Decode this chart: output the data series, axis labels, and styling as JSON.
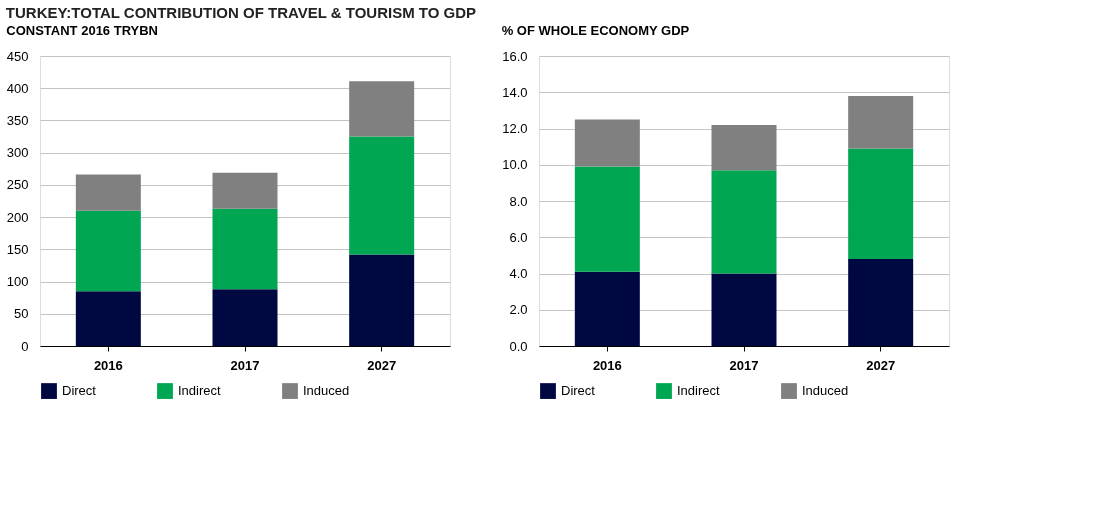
{
  "chart_data": [
    {
      "type": "bar",
      "title": "TURKEY:TOTAL CONTRIBUTION OF TRAVEL & TOURISM TO GDP",
      "subtitle": "CONSTANT 2016 TRYBN",
      "categories": [
        "2016",
        "2017",
        "2027"
      ],
      "stacked": true,
      "ylim": [
        0,
        450
      ],
      "yticks": [
        0,
        50,
        100,
        150,
        200,
        250,
        300,
        350,
        400,
        450
      ],
      "grid": "y",
      "legend": "bottom",
      "series": [
        {
          "name": "Direct",
          "color": "#000842",
          "values": [
            85,
            88,
            142
          ]
        },
        {
          "name": "Indirect",
          "color": "#00a651",
          "values": [
            125,
            125,
            183
          ]
        },
        {
          "name": "Induced",
          "color": "#808080",
          "values": [
            56,
            56,
            86
          ]
        }
      ]
    },
    {
      "type": "bar",
      "subtitle": "% OF WHOLE ECONOMY GDP",
      "categories": [
        "2016",
        "2017",
        "2027"
      ],
      "stacked": true,
      "ylim": [
        0,
        16
      ],
      "yticks": [
        {
          "value": 0,
          "label": "0.0"
        },
        {
          "value": 2,
          "label": "2.0"
        },
        {
          "value": 4,
          "label": "4.0"
        },
        {
          "value": 6,
          "label": "6.0"
        },
        {
          "value": 8,
          "label": "8.0"
        },
        {
          "value": 10,
          "label": "10.0"
        },
        {
          "value": 12,
          "label": "12.0"
        },
        {
          "value": 14,
          "label": "14.0"
        },
        {
          "value": 16,
          "label": "16.0"
        }
      ],
      "grid": "y",
      "legend": "bottom",
      "series": [
        {
          "name": "Direct",
          "color": "#000842",
          "values": [
            4.1,
            4.0,
            4.8
          ]
        },
        {
          "name": "Indirect",
          "color": "#00a651",
          "values": [
            5.8,
            5.7,
            6.1
          ]
        },
        {
          "name": "Induced",
          "color": "#808080",
          "values": [
            2.6,
            2.5,
            2.9
          ]
        }
      ]
    }
  ]
}
